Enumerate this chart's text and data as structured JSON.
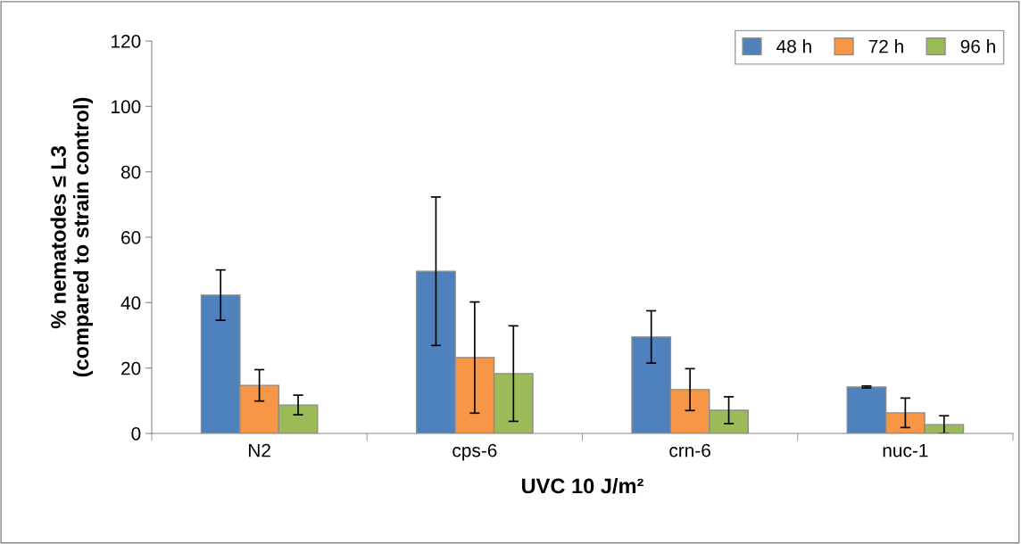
{
  "chart_data": {
    "type": "bar",
    "xlabel": "UVC 10 J/m²",
    "ylabel": "% nematodes ≤ L3\n(compared to strain control)",
    "categories": [
      "N2",
      "cps-6",
      "crn-6",
      "nuc-1"
    ],
    "series": [
      {
        "name": "48 h",
        "color": "#4f81bd",
        "values": [
          42.3,
          49.6,
          29.5,
          14.2
        ],
        "errors": [
          7.7,
          22.7,
          8,
          0.3
        ]
      },
      {
        "name": "72 h",
        "color": "#f79646",
        "values": [
          14.7,
          23.2,
          13.4,
          6.3
        ],
        "errors": [
          4.8,
          17,
          6.4,
          4.5
        ]
      },
      {
        "name": "96 h",
        "color": "#9bbb59",
        "values": [
          8.7,
          18.3,
          7.1,
          2.7
        ],
        "errors": [
          3,
          14.6,
          4.1,
          2.7
        ]
      }
    ],
    "ylim": [
      0,
      120
    ],
    "yticks": [
      0,
      20,
      40,
      60,
      80,
      100,
      120
    ],
    "grid": false,
    "legend": "top right"
  }
}
